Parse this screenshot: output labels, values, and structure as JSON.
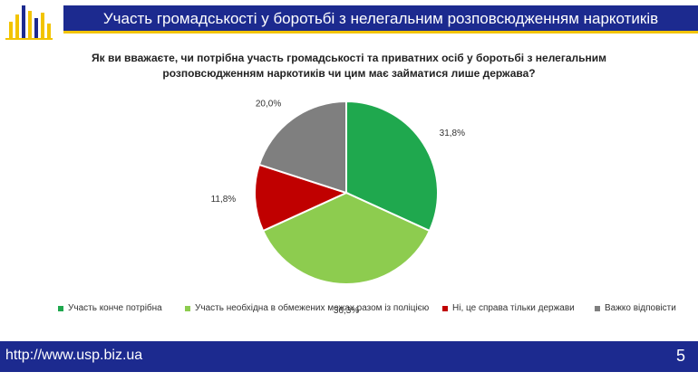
{
  "header": {
    "title": "Участь громадськості у боротьбі з нелегальним розповсюдженням наркотиків"
  },
  "question": {
    "line1": "Як ви вважаєте, чи потрібна участь громадськості та приватних осіб у боротьбі з нелегальним",
    "line2": "розповсюдженням наркотиків чи цим має займатися лише держава?"
  },
  "chart_data": {
    "type": "pie",
    "title": "",
    "start_angle_deg": 0,
    "direction": "clockwise",
    "slices": [
      {
        "label": "Участь конче потрібна",
        "value": 31.8,
        "value_label": "31,8%",
        "color": "#1fa84e"
      },
      {
        "label": "Участь необхідна в обмежених межах разом із поліцією",
        "value": 36.3,
        "value_label": "36,3%",
        "color": "#8dcc4f"
      },
      {
        "label": "Ні, це справа тільки держави",
        "value": 11.8,
        "value_label": "11,8%",
        "color": "#c00000"
      },
      {
        "label": "Важко відповісти",
        "value": 20.0,
        "value_label": "20,0%",
        "color": "#7f7f7f"
      }
    ],
    "legend_position": "bottom"
  },
  "footer": {
    "url": "http://www.usp.biz.ua",
    "page_number": "5"
  },
  "colors": {
    "brand_blue": "#1c2a8f",
    "accent_yellow": "#f2c400"
  }
}
